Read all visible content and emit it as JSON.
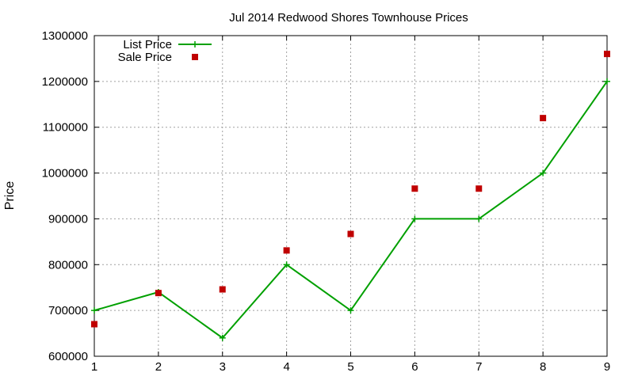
{
  "chart_data": {
    "type": "line",
    "title": "Jul 2014 Redwood Shores Townhouse Prices",
    "xlabel": "",
    "ylabel": "Price",
    "x": [
      1,
      2,
      3,
      4,
      5,
      6,
      7,
      8,
      9
    ],
    "xlim": [
      1,
      9
    ],
    "ylim": [
      600000,
      1300000
    ],
    "x_ticks": [
      "1",
      "2",
      "3",
      "4",
      "5",
      "6",
      "7",
      "8",
      "9"
    ],
    "y_ticks": [
      "600000",
      "700000",
      "800000",
      "900000",
      "1000000",
      "1100000",
      "1200000",
      "1300000"
    ],
    "grid": true,
    "legend_position": "top-left",
    "series": [
      {
        "name": "List Price",
        "style": "line-with-plus-markers",
        "color": "#00a000",
        "values": [
          700000,
          740000,
          640000,
          800000,
          700000,
          900000,
          900000,
          1000000,
          1200000
        ]
      },
      {
        "name": "Sale Price",
        "style": "square-points",
        "color": "#c00000",
        "values": [
          670000,
          738000,
          746000,
          831000,
          867000,
          966000,
          966000,
          1120000,
          1260000
        ]
      }
    ]
  }
}
